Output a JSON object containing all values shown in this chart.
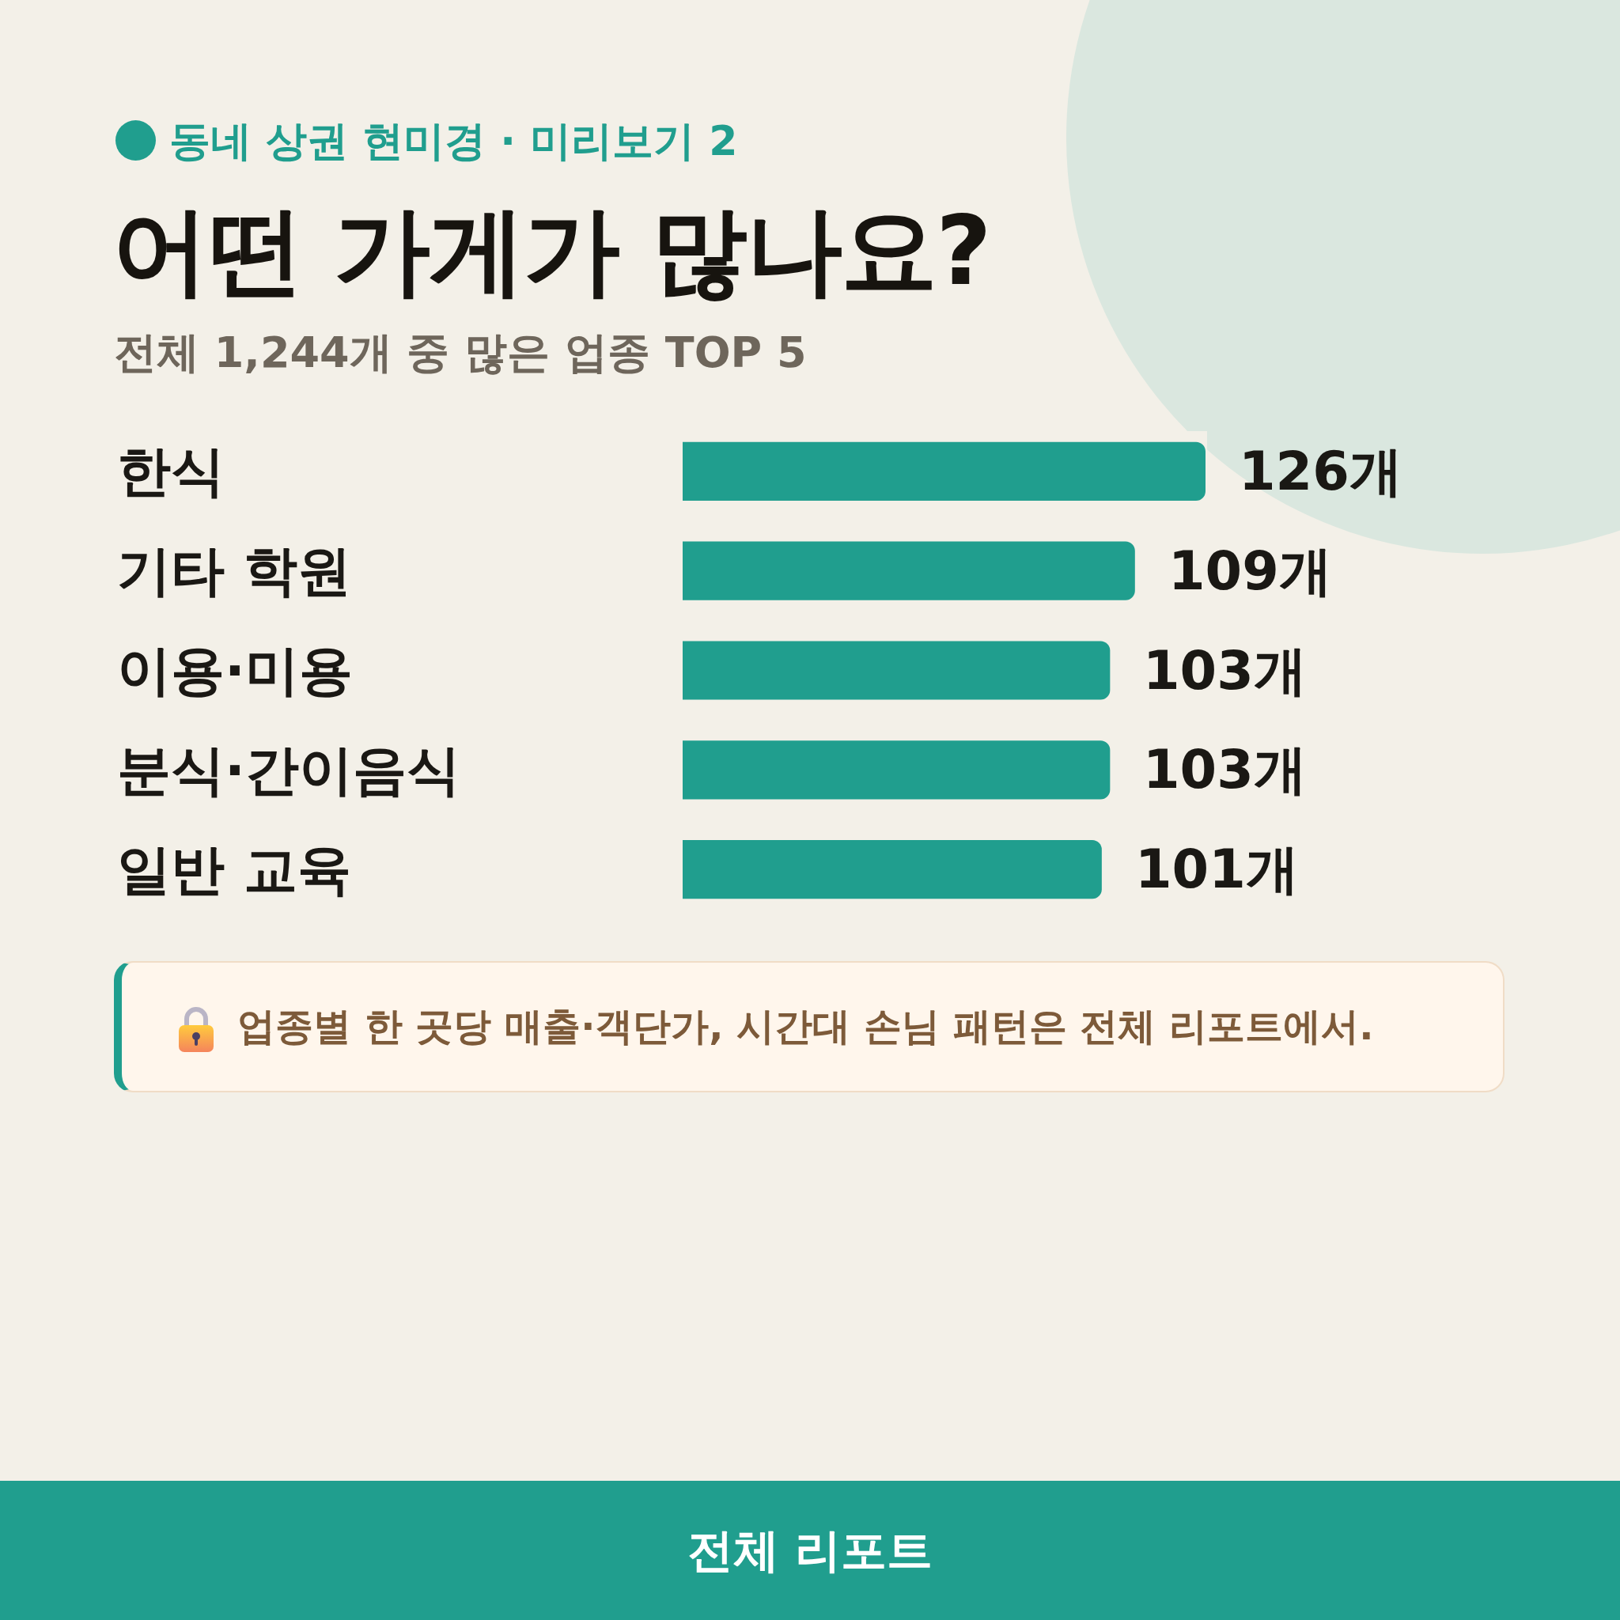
{
  "chart_data": {
    "type": "bar",
    "orientation": "horizontal",
    "title": "어떤 가게가 많나요?",
    "subtitle": "전체 1,244개 중 많은 업종 TOP 5",
    "categories": [
      "한식",
      "기타 학원",
      "이용·미용",
      "분식·간이음식",
      "일반 교육"
    ],
    "values": [
      126,
      109,
      103,
      103,
      101
    ],
    "color": "#209e8e",
    "value_labels": [
      "126개",
      "109개",
      "103개",
      "103개",
      "101개"
    ],
    "tick_labels": "y",
    "annotations": [
      "동네 상권 현미경 · 미리보기 2",
      "업종별 한 곳당 매출·객단가, 시간대 손님 패턴은 전체 리포트에서.",
      "전체 리포트"
    ]
  }
}
